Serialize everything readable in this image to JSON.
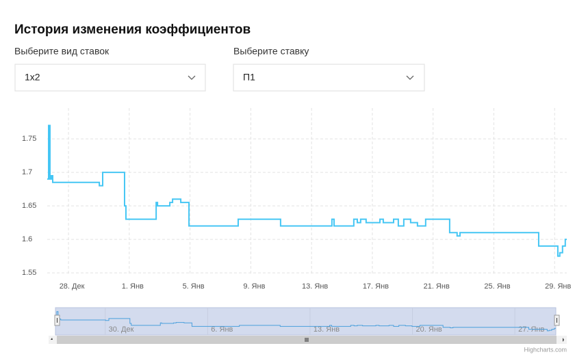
{
  "header": {
    "title": "История изменения коэффициентов"
  },
  "filters": [
    {
      "label": "Выберите вид ставок",
      "value": "1x2"
    },
    {
      "label": "Выберите ставку",
      "value": "П1"
    }
  ],
  "chart_data": {
    "type": "line",
    "step": true,
    "color": "#45c6f4",
    "grid": true,
    "x": [
      -4.4,
      -4.31,
      -4.22,
      -4.13,
      -4.04,
      -0.97,
      -0.75,
      0.69,
      0.78,
      2.77,
      2.86,
      3.67,
      3.85,
      4.39,
      4.93,
      8.17,
      10.96,
      14.34,
      14.48,
      15.78,
      16.01,
      16.23,
      16.59,
      17.5,
      17.72,
      18.4,
      18.71,
      19.07,
      19.52,
      19.97,
      20.51,
      22.09,
      22.58,
      22.77,
      27.95,
      29.21,
      29.34,
      29.52,
      29.7
    ],
    "values": [
      1.69,
      1.77,
      1.69,
      1.695,
      1.685,
      1.68,
      1.7,
      1.65,
      1.63,
      1.655,
      1.65,
      1.655,
      1.66,
      1.655,
      1.62,
      1.63,
      1.62,
      1.63,
      1.62,
      1.63,
      1.625,
      1.63,
      1.625,
      1.63,
      1.625,
      1.63,
      1.62,
      1.63,
      1.625,
      1.62,
      1.63,
      1.61,
      1.605,
      1.61,
      1.59,
      1.575,
      1.58,
      1.59,
      1.6
    ],
    "xlim": [
      -4.4,
      29.8
    ],
    "ylim": [
      1.546,
      1.796
    ],
    "xticks": [
      {
        "value": -3,
        "label": "28. Дек"
      },
      {
        "value": 1,
        "label": "1. Янв"
      },
      {
        "value": 5,
        "label": "5. Янв"
      },
      {
        "value": 9,
        "label": "9. Янв"
      },
      {
        "value": 13,
        "label": "13. Янв"
      },
      {
        "value": 17,
        "label": "17. Янв"
      },
      {
        "value": 21,
        "label": "21. Янв"
      },
      {
        "value": 25,
        "label": "25. Янв"
      },
      {
        "value": 29,
        "label": "29. Янв"
      }
    ],
    "yticks": [
      1.55,
      1.6,
      1.65,
      1.7,
      1.75
    ],
    "navigator": {
      "xticks": [
        {
          "value": -1,
          "label": "30. Дек"
        },
        {
          "value": 6,
          "label": "6. Янв"
        },
        {
          "value": 13,
          "label": "13. Янв"
        },
        {
          "value": 20,
          "label": "20. Янв"
        },
        {
          "value": 27,
          "label": "27. Янв"
        }
      ],
      "color": "#4a9fdc"
    },
    "credits": "Highcharts.com"
  }
}
